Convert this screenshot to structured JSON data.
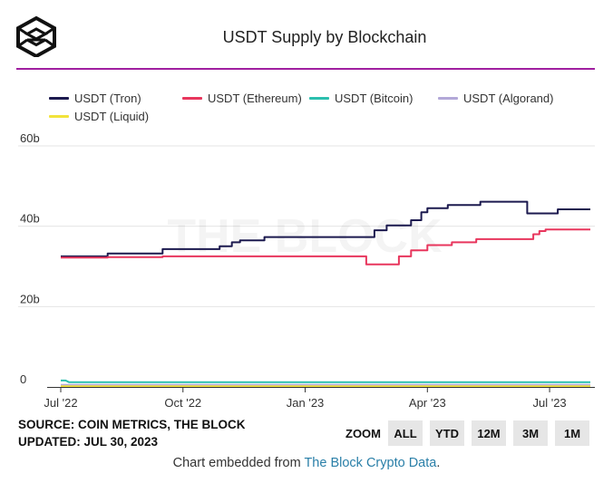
{
  "title": "USDT Supply by Blockchain",
  "watermark": "THE BLOCK",
  "legend": [
    {
      "label": "USDT (Tron)",
      "color": "#1c1a4f"
    },
    {
      "label": "USDT (Ethereum)",
      "color": "#e8365d"
    },
    {
      "label": "USDT (Bitcoin)",
      "color": "#2bbfae"
    },
    {
      "label": "USDT (Algorand)",
      "color": "#b3a8d8"
    },
    {
      "label": "USDT (Liquid)",
      "color": "#f2e33a"
    }
  ],
  "footer": {
    "source": "SOURCE: COIN METRICS, THE BLOCK",
    "updated": "UPDATED: JUL 30, 2023"
  },
  "zoom": {
    "label": "ZOOM",
    "buttons": [
      "ALL",
      "YTD",
      "12M",
      "3M",
      "1M"
    ]
  },
  "embed": {
    "text": "Chart embedded from ",
    "link": "The Block Crypto Data",
    "suffix": "."
  },
  "chart_data": {
    "type": "line",
    "title": "USDT Supply by Blockchain",
    "xlabel": "",
    "ylabel": "",
    "y_unit": "billions USD",
    "ylim": [
      0,
      60
    ],
    "xlim": [
      0,
      13
    ],
    "x_unit": "months since Jul 1, 2022",
    "y_ticks": [
      {
        "v": 0,
        "label": "0"
      },
      {
        "v": 20,
        "label": "20b"
      },
      {
        "v": 40,
        "label": "40b"
      },
      {
        "v": 60,
        "label": "60b"
      }
    ],
    "x_ticks": [
      {
        "v": 0,
        "label": "Jul '22"
      },
      {
        "v": 3,
        "label": "Oct '22"
      },
      {
        "v": 6,
        "label": "Jan '23"
      },
      {
        "v": 9,
        "label": "Apr '23"
      },
      {
        "v": 12,
        "label": "Jul '23"
      }
    ],
    "grid": true,
    "legend_position": "top",
    "series": [
      {
        "name": "USDT (Tron)",
        "color": "#1c1a4f",
        "x": [
          0,
          1.15,
          1.15,
          2.5,
          2.5,
          3.9,
          3.9,
          4.2,
          4.2,
          4.4,
          4.4,
          5.0,
          5.0,
          7.7,
          7.7,
          8.0,
          8.0,
          8.6,
          8.6,
          8.85,
          8.85,
          9.0,
          9.0,
          9.5,
          9.5,
          10.3,
          10.3,
          11.45,
          11.45,
          12.2,
          12.2,
          13
        ],
        "y": [
          32.5,
          32.5,
          33.2,
          33.2,
          34.3,
          34.3,
          35.0,
          35.0,
          36.0,
          36.0,
          36.5,
          36.5,
          37.3,
          37.3,
          39.0,
          39.0,
          40.2,
          40.2,
          41.5,
          41.5,
          43.5,
          43.5,
          44.5,
          44.5,
          45.3,
          45.3,
          46.1,
          46.1,
          43.2,
          43.2,
          44.2,
          44.2
        ]
      },
      {
        "name": "USDT (Ethereum)",
        "color": "#e8365d",
        "x": [
          0,
          1.15,
          1.15,
          2.5,
          2.5,
          7.5,
          7.5,
          8.3,
          8.3,
          8.6,
          8.6,
          9.0,
          9.0,
          9.6,
          9.6,
          10.2,
          10.2,
          11.6,
          11.6,
          11.75,
          11.75,
          11.9,
          11.9,
          13
        ],
        "y": [
          32.2,
          32.2,
          32.3,
          32.3,
          32.5,
          32.5,
          30.5,
          30.5,
          32.5,
          32.5,
          34.0,
          34.0,
          35.3,
          35.3,
          36.0,
          36.0,
          36.8,
          36.8,
          38.0,
          38.0,
          38.8,
          38.8,
          39.2,
          39.2
        ]
      },
      {
        "name": "USDT (Bitcoin)",
        "color": "#2bbfae",
        "x": [
          0,
          0.12,
          0.2,
          13
        ],
        "y": [
          1.6,
          1.6,
          1.2,
          1.2
        ]
      },
      {
        "name": "USDT (Algorand)",
        "color": "#b3a8d8",
        "x": [
          0,
          13
        ],
        "y": [
          0.5,
          0.5
        ]
      },
      {
        "name": "USDT (Liquid)",
        "color": "#f2e33a",
        "x": [
          0,
          13
        ],
        "y": [
          0.15,
          0.15
        ]
      }
    ]
  }
}
